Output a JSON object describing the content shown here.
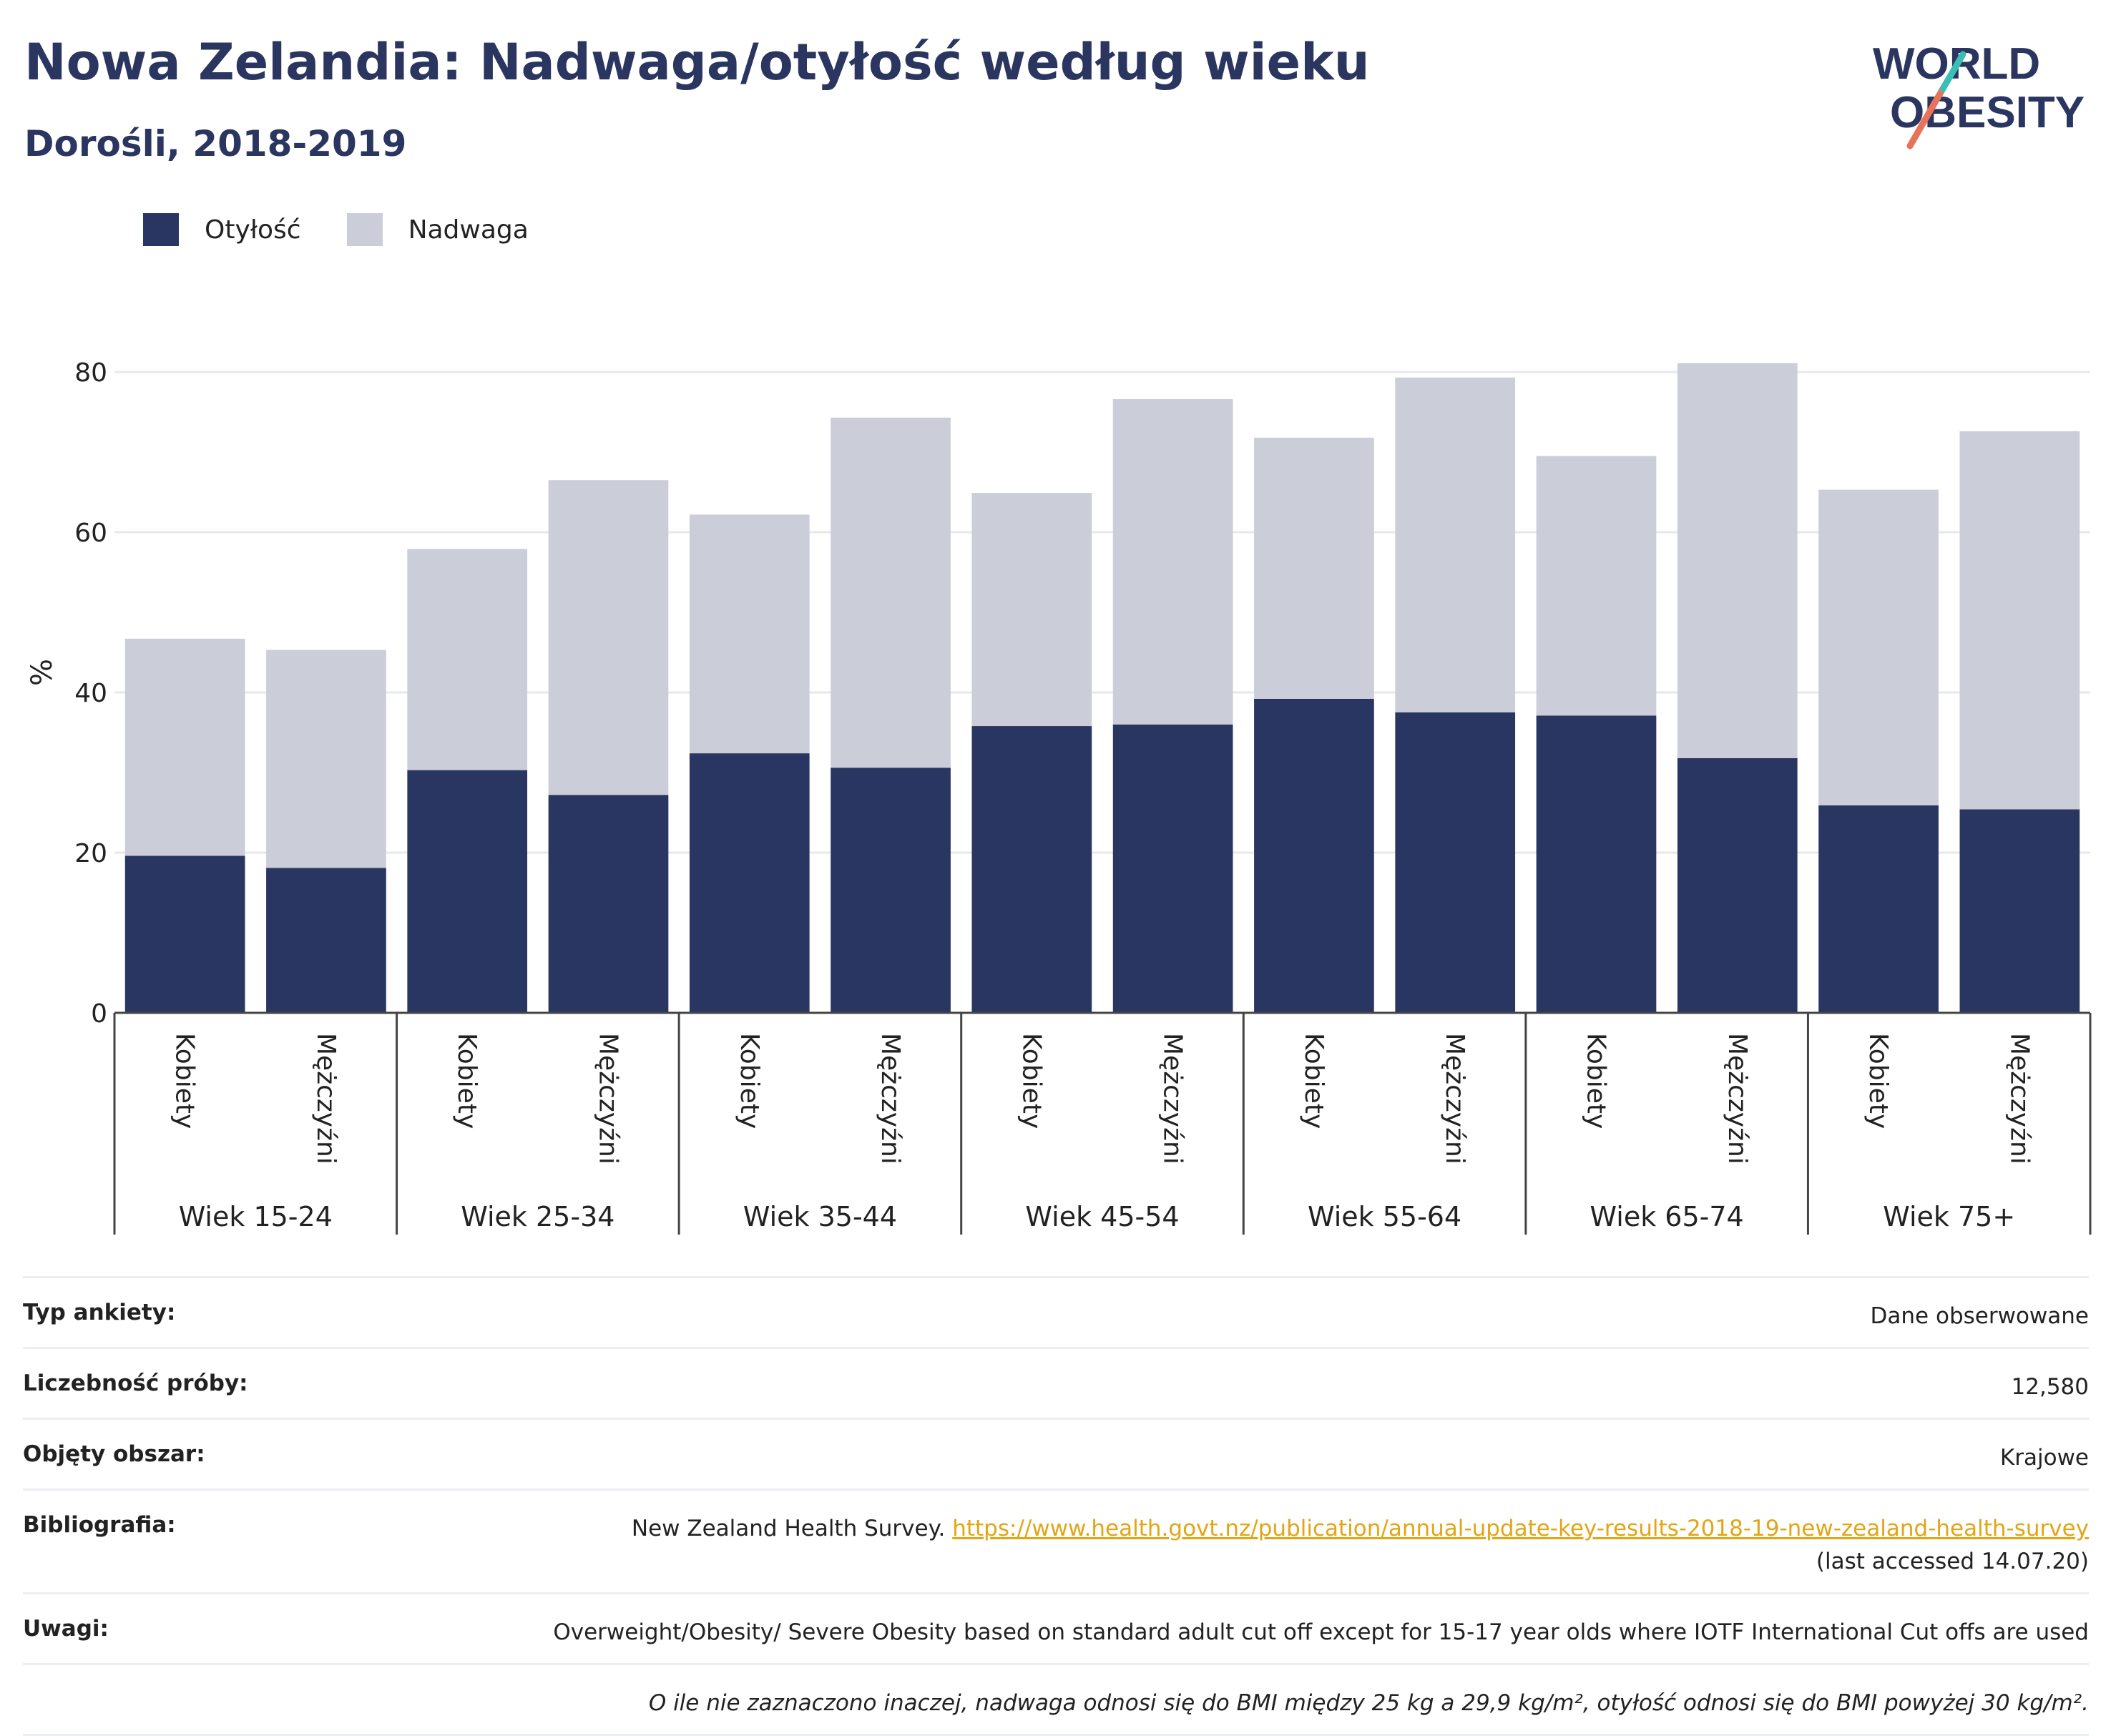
{
  "header": {
    "title": "Nowa Zelandia: Nadwaga/otyłość według wieku",
    "subtitle": "Dorośli, 2018-2019"
  },
  "logo": {
    "line1": "WORLD",
    "line2": "OBESITY"
  },
  "colors": {
    "obesity": "#2a3662",
    "overweight": "#cbcdd8",
    "title": "#2a3560",
    "link": "#e2a514",
    "logo_slash_red": "#e8735a",
    "logo_slash_teal": "#3bbfb5"
  },
  "chart_data": {
    "type": "bar",
    "stacked": true,
    "ylabel": "%",
    "ylim": [
      0,
      80
    ],
    "yticks": [
      0,
      20,
      40,
      60,
      80
    ],
    "grid": true,
    "legend_position": "top-left",
    "groups": [
      "Wiek 15-24",
      "Wiek 25-34",
      "Wiek 35-44",
      "Wiek 45-54",
      "Wiek 55-64",
      "Wiek 65-74",
      "Wiek 75+"
    ],
    "subcategories": [
      "Kobiety",
      "Mężczyźni"
    ],
    "series": [
      {
        "name": "Otyłość",
        "values": [
          19.6,
          18.1,
          30.3,
          27.2,
          32.4,
          30.6,
          35.8,
          36.0,
          39.2,
          37.5,
          37.1,
          31.8,
          25.9,
          25.4
        ]
      },
      {
        "name": "Nadwaga",
        "values": [
          27.1,
          27.2,
          27.6,
          39.3,
          29.8,
          43.7,
          29.1,
          40.6,
          32.6,
          41.8,
          32.4,
          49.3,
          39.4,
          47.2
        ]
      }
    ]
  },
  "info": {
    "survey_type": {
      "label": "Typ ankiety:",
      "value": "Dane obserwowane"
    },
    "sample_size": {
      "label": "Liczebność próby:",
      "value": "12,580"
    },
    "area": {
      "label": "Objęty obszar:",
      "value": "Krajowe"
    },
    "bibliography": {
      "label": "Bibliografia:",
      "prefix": "New Zealand Health Survey.",
      "link": "https://www.health.govt.nz/publication/annual-update-key-results-2018-19-new-zealand-health-survey",
      "suffix": "(last accessed 14.07.20)"
    },
    "notes": {
      "label": "Uwagi:",
      "value": "Overweight/Obesity/ Severe Obesity based on standard adult cut off except for 15-17 year olds where IOTF International Cut offs are used"
    },
    "footnote": "O ile nie zaznaczono inaczej, nadwaga odnosi się do BMI między 25 kg a 29,9 kg/m², otyłość odnosi się do BMI powyżej 30 kg/m²."
  }
}
